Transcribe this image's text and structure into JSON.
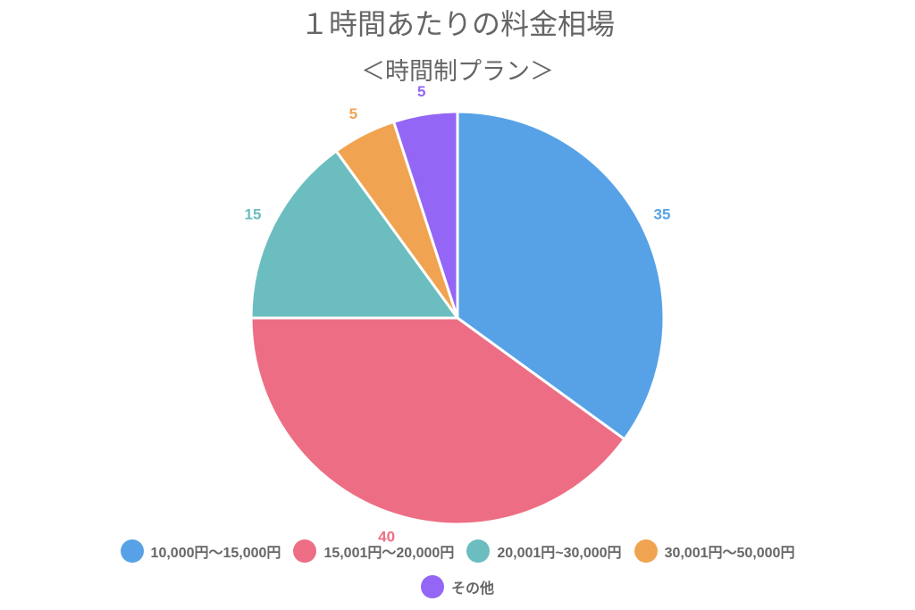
{
  "chart_data": {
    "type": "pie",
    "title": "１時間あたりの料金相場",
    "subtitle": "＜時間制プラン＞",
    "categories": [
      "10,000円〜15,000円",
      "15,001円〜20,000円",
      "20,001円~30,000円",
      "30,001円〜50,000円",
      "その他"
    ],
    "values": [
      35,
      40,
      15,
      5,
      5
    ],
    "colors": [
      "#57a2e6",
      "#ed6e84",
      "#6cbdbf",
      "#f0a451",
      "#9466f5"
    ],
    "legend": "bottom"
  }
}
